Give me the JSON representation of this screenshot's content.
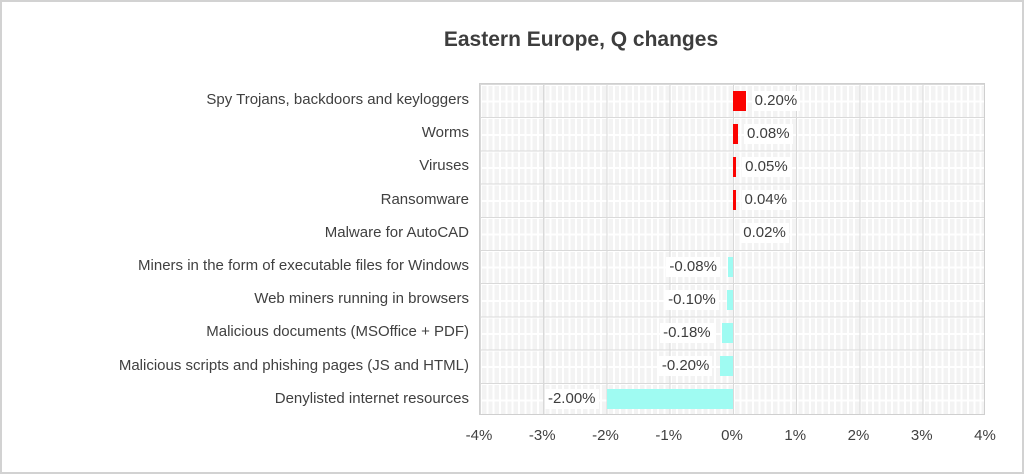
{
  "chart_data": {
    "type": "bar",
    "orientation": "horizontal",
    "title": "Eastern Europe, Q changes",
    "categories": [
      "Spy Trojans, backdoors and keyloggers",
      "Worms",
      "Viruses",
      "Ransomware",
      "Malware for AutoCAD",
      "Miners in the form of executable files for Windows",
      "Web miners running in browsers",
      "Malicious documents (MSOffice + PDF)",
      "Malicious scripts and phishing pages (JS and HTML)",
      "Denylisted internet resources"
    ],
    "values": [
      0.2,
      0.08,
      0.05,
      0.04,
      0.02,
      -0.08,
      -0.1,
      -0.18,
      -0.2,
      -2.0
    ],
    "value_labels": [
      "0.20%",
      "0.08%",
      "0.05%",
      "0.04%",
      "0.02%",
      "-0.08%",
      "-0.10%",
      "-0.18%",
      "-0.20%",
      "-2.00%"
    ],
    "xlabel": "",
    "ylabel": "",
    "xlim": [
      -4,
      4
    ],
    "x_tick_labels": [
      "-4%",
      "-3%",
      "-2%",
      "-1%",
      "0%",
      "1%",
      "2%",
      "3%",
      "4%"
    ],
    "grid": "major and minor, both axes",
    "legend_position": "none",
    "colors": {
      "positive_bar": "#fb0200",
      "negative_bar": "#9ffbf2",
      "title_text": "#3d3d3d",
      "label_text": "#404040",
      "major_grid": "#d9d9d9",
      "minor_grid": "#ffffff",
      "plot_fill": "#f3f3f3",
      "frame_border": "#d2d2d2"
    }
  }
}
